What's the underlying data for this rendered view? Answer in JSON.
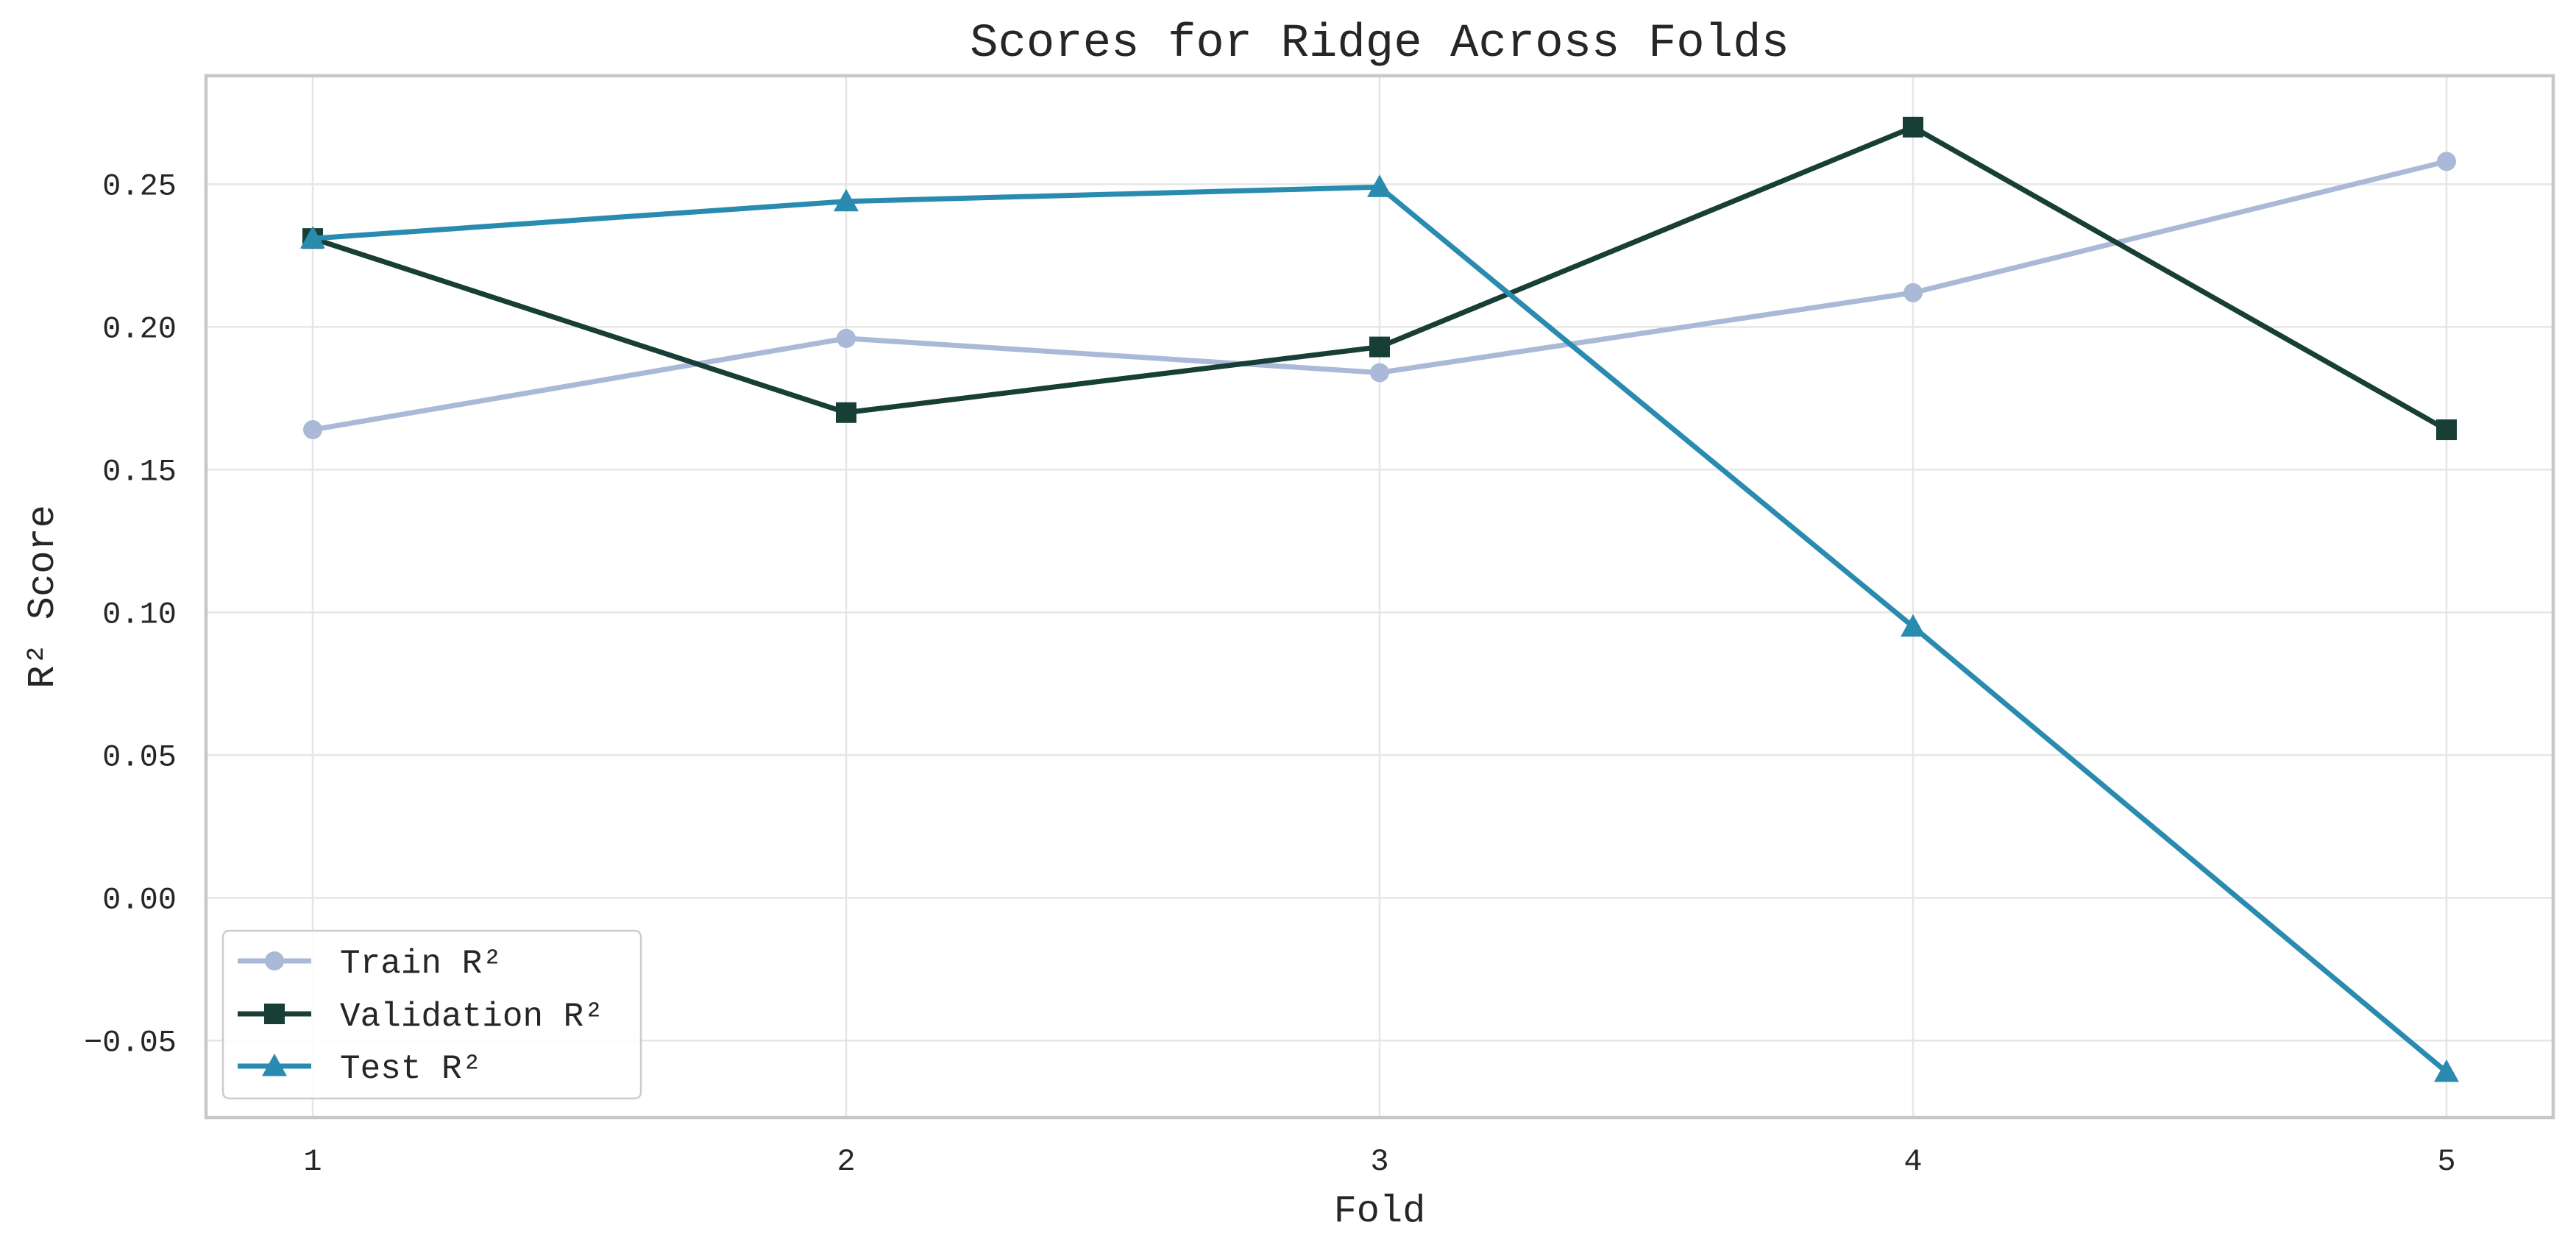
{
  "chart_data": {
    "type": "line",
    "title": "Scores for Ridge Across Folds",
    "xlabel": "Fold",
    "ylabel": "R² Score",
    "x": [
      1,
      2,
      3,
      4,
      5
    ],
    "x_ticks": [
      "1",
      "2",
      "3",
      "4",
      "5"
    ],
    "xlim": [
      0.8,
      5.2
    ],
    "ylim": [
      -0.077,
      0.288
    ],
    "y_ticks": [
      -0.05,
      0.0,
      0.05,
      0.1,
      0.15,
      0.2,
      0.25
    ],
    "y_tick_labels": [
      "−0.05",
      "0.00",
      "0.05",
      "0.10",
      "0.15",
      "0.20",
      "0.25"
    ],
    "grid": true,
    "legend_position": "lower-left",
    "series": [
      {
        "name": "Train R²",
        "values": [
          0.164,
          0.196,
          0.184,
          0.212,
          0.258
        ],
        "color": "#aab9d8",
        "marker": "circle"
      },
      {
        "name": "Validation R²",
        "values": [
          0.231,
          0.17,
          0.193,
          0.27,
          0.164
        ],
        "color": "#173f35",
        "marker": "square"
      },
      {
        "name": "Test R²",
        "values": [
          0.231,
          0.244,
          0.249,
          0.095,
          -0.061
        ],
        "color": "#2a8bb0",
        "marker": "triangle"
      }
    ]
  }
}
